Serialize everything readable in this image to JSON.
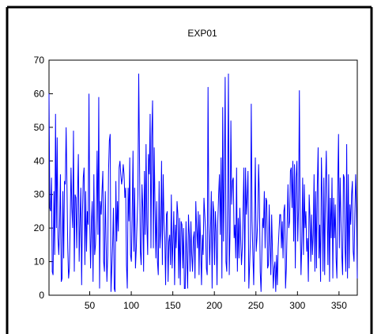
{
  "chart_data": {
    "type": "line",
    "title": "EXP01",
    "xlabel": "",
    "ylabel": "",
    "xlim": [
      1,
      372
    ],
    "ylim": [
      0,
      70
    ],
    "grid": false,
    "legend": "none",
    "x_ticks": [
      50,
      100,
      150,
      200,
      250,
      300,
      350
    ],
    "y_ticks": [
      0,
      10,
      20,
      30,
      40,
      50,
      60,
      70
    ],
    "series": [
      {
        "color": "#0000ff",
        "values": [
          60,
          26,
          25,
          35,
          7,
          6,
          31,
          12,
          54,
          20,
          47,
          17,
          12,
          21,
          36,
          4,
          5,
          31,
          11,
          34,
          33,
          50,
          33,
          14,
          5,
          8,
          22,
          38,
          26,
          20,
          49,
          7,
          30,
          29,
          14,
          30,
          42,
          10,
          22,
          32,
          3,
          24,
          35,
          38,
          9,
          31,
          13,
          25,
          21,
          60,
          21,
          8,
          22,
          28,
          4,
          36,
          12,
          15,
          23,
          43,
          18,
          59,
          2,
          28,
          24,
          31,
          37,
          10,
          7,
          31,
          16,
          4,
          12,
          37,
          46,
          48,
          1,
          8,
          15,
          26,
          2,
          1,
          34,
          16,
          28,
          19,
          38,
          40,
          36,
          33,
          35,
          39,
          36,
          29,
          32,
          9,
          2,
          32,
          22,
          41,
          12,
          10,
          24,
          43,
          13,
          32,
          8,
          14,
          22,
          30,
          66,
          40,
          13,
          9,
          33,
          26,
          7,
          37,
          18,
          45,
          21,
          12,
          42,
          36,
          54,
          14,
          47,
          58,
          14,
          44,
          26,
          11,
          28,
          10,
          6,
          34,
          14,
          19,
          40,
          9,
          36,
          22,
          17,
          3,
          24,
          25,
          4,
          16,
          18,
          9,
          30,
          8,
          16,
          25,
          3,
          21,
          14,
          28,
          24,
          5,
          23,
          3,
          22,
          21,
          8,
          20,
          2,
          2,
          22,
          11,
          2,
          24,
          18,
          7,
          22,
          12,
          7,
          17,
          19,
          5,
          28,
          20,
          14,
          25,
          6,
          24,
          14,
          3,
          18,
          12,
          29,
          24,
          19,
          8,
          6,
          62,
          21,
          9,
          19,
          31,
          2,
          28,
          25,
          9,
          25,
          19,
          3,
          22,
          30,
          36,
          18,
          41,
          5,
          56,
          16,
          34,
          65,
          10,
          7,
          29,
          66,
          6,
          19,
          52,
          27,
          34,
          35,
          17,
          21,
          11,
          38,
          7,
          23,
          11,
          26,
          17,
          9,
          14,
          26,
          38,
          4,
          38,
          24,
          29,
          37,
          2,
          9,
          17,
          57,
          22,
          12,
          3,
          23,
          41,
          13,
          17,
          23,
          39,
          29,
          7,
          1,
          13,
          23,
          20,
          31,
          14,
          29,
          28,
          8,
          9,
          27,
          15,
          6,
          24,
          13,
          2,
          8,
          10,
          1,
          12,
          3,
          14,
          19,
          24,
          24,
          14,
          22,
          11,
          25,
          27,
          2,
          8,
          21,
          33,
          20,
          22,
          37,
          38,
          26,
          40,
          16,
          39,
          8,
          35,
          40,
          16,
          26,
          61,
          21,
          6,
          16,
          35,
          12,
          33,
          20,
          25,
          13,
          17,
          4,
          30,
          23,
          10,
          24,
          12,
          18,
          36,
          7,
          31,
          8,
          33,
          44,
          11,
          21,
          4,
          41,
          28,
          7,
          35,
          6,
          32,
          43,
          25,
          9,
          36,
          4,
          29,
          17,
          35,
          5,
          29,
          17,
          27,
          11,
          5,
          32,
          48,
          14,
          35,
          22,
          12,
          6,
          36,
          35,
          14,
          7,
          45,
          5,
          36,
          8,
          27,
          21,
          30,
          34,
          13,
          10,
          24,
          36,
          26,
          5
        ]
      }
    ]
  }
}
